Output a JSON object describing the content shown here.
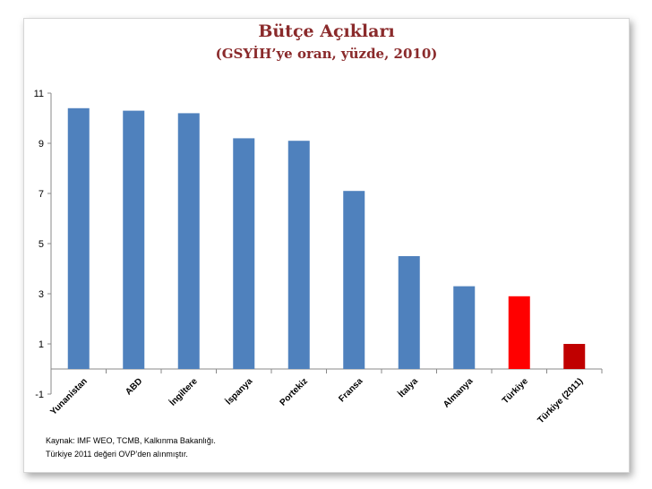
{
  "chart_data": {
    "type": "bar",
    "title": "Bütçe Açıkları",
    "subtitle": "(GSYİH’ye oran, yüzde, 2010)",
    "categories": [
      "Yunanistan",
      "ABD",
      "İngiltere",
      "İspanya",
      "Portekiz",
      "Fransa",
      "İtalya",
      "Almanya",
      "Türkiye",
      "Türkiye (2011)"
    ],
    "values": [
      10.4,
      10.3,
      10.2,
      9.2,
      9.1,
      7.1,
      4.5,
      3.3,
      2.9,
      1.0
    ],
    "colors": [
      "#4f81bd",
      "#4f81bd",
      "#4f81bd",
      "#4f81bd",
      "#4f81bd",
      "#4f81bd",
      "#4f81bd",
      "#4f81bd",
      "#ff0000",
      "#c00000"
    ],
    "ylim": [
      -1,
      11
    ],
    "yticks": [
      -1,
      1,
      3,
      5,
      7,
      9,
      11
    ],
    "grid": false,
    "xlabel": "",
    "ylabel": ""
  },
  "notes": {
    "source": "Kaynak: IMF WEO, TCMB, Kalkınma Bakanlığı.",
    "note": "Türkiye 2011 değeri OVP’den alınmıştır."
  }
}
